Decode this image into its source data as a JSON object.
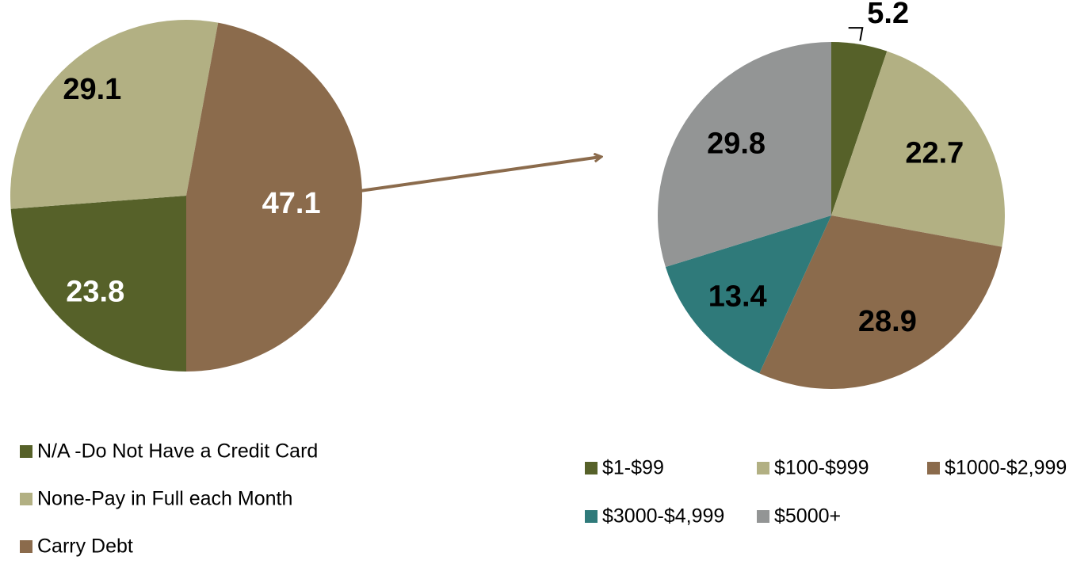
{
  "chart_data": [
    {
      "type": "pie",
      "categories": [
        "N/A -Do Not Have a Credit Card",
        "None-Pay in Full each Month",
        "Carry Debt"
      ],
      "values": [
        23.8,
        29.1,
        47.1
      ],
      "colors": [
        "#566129",
        "#b2b083",
        "#8b6b4c"
      ],
      "label_colors": [
        "#ffffff",
        "#000000",
        "#ffffff"
      ]
    },
    {
      "type": "pie",
      "categories": [
        "$1-$99",
        "$100-$999",
        "$1000-$2,999",
        "$3000-$4,999",
        "$5000+"
      ],
      "values": [
        5.2,
        22.7,
        28.9,
        13.4,
        29.8
      ],
      "colors": [
        "#566129",
        "#b2b083",
        "#8b6b4c",
        "#2f7a7a",
        "#939595"
      ],
      "label_colors": [
        "#000000",
        "#000000",
        "#000000",
        "#000000",
        "#000000"
      ]
    }
  ]
}
